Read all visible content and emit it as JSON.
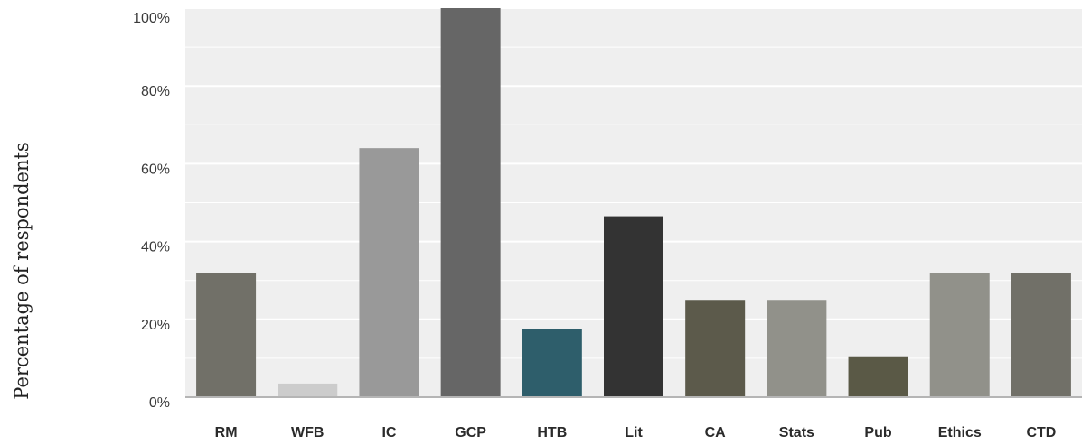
{
  "chart_data": {
    "type": "bar",
    "title": "",
    "xlabel": "",
    "ylabel": "Percentage of respondents",
    "ylim": [
      0,
      100
    ],
    "yticks": [
      0,
      20,
      40,
      60,
      80,
      100
    ],
    "ytick_labels": [
      "0%",
      "20%",
      "40%",
      "60%",
      "80%",
      "100%"
    ],
    "grid": true,
    "legend": "none",
    "categories": [
      "RM",
      "WFB",
      "IC",
      "GCP",
      "HTB",
      "Lit",
      "CA",
      "Stats",
      "Pub",
      "Ethics",
      "CTD"
    ],
    "values": [
      32,
      3.5,
      64,
      100,
      17.5,
      46.5,
      25,
      25,
      10.5,
      32,
      32
    ],
    "colors": [
      "#717068",
      "#cccccc",
      "#999999",
      "#666666",
      "#2e5e6b",
      "#333333",
      "#5c5a4b",
      "#91918a",
      "#5a5946",
      "#91918a",
      "#717068"
    ],
    "plot_background": "#efefef",
    "gridline_color": "#ffffff"
  }
}
